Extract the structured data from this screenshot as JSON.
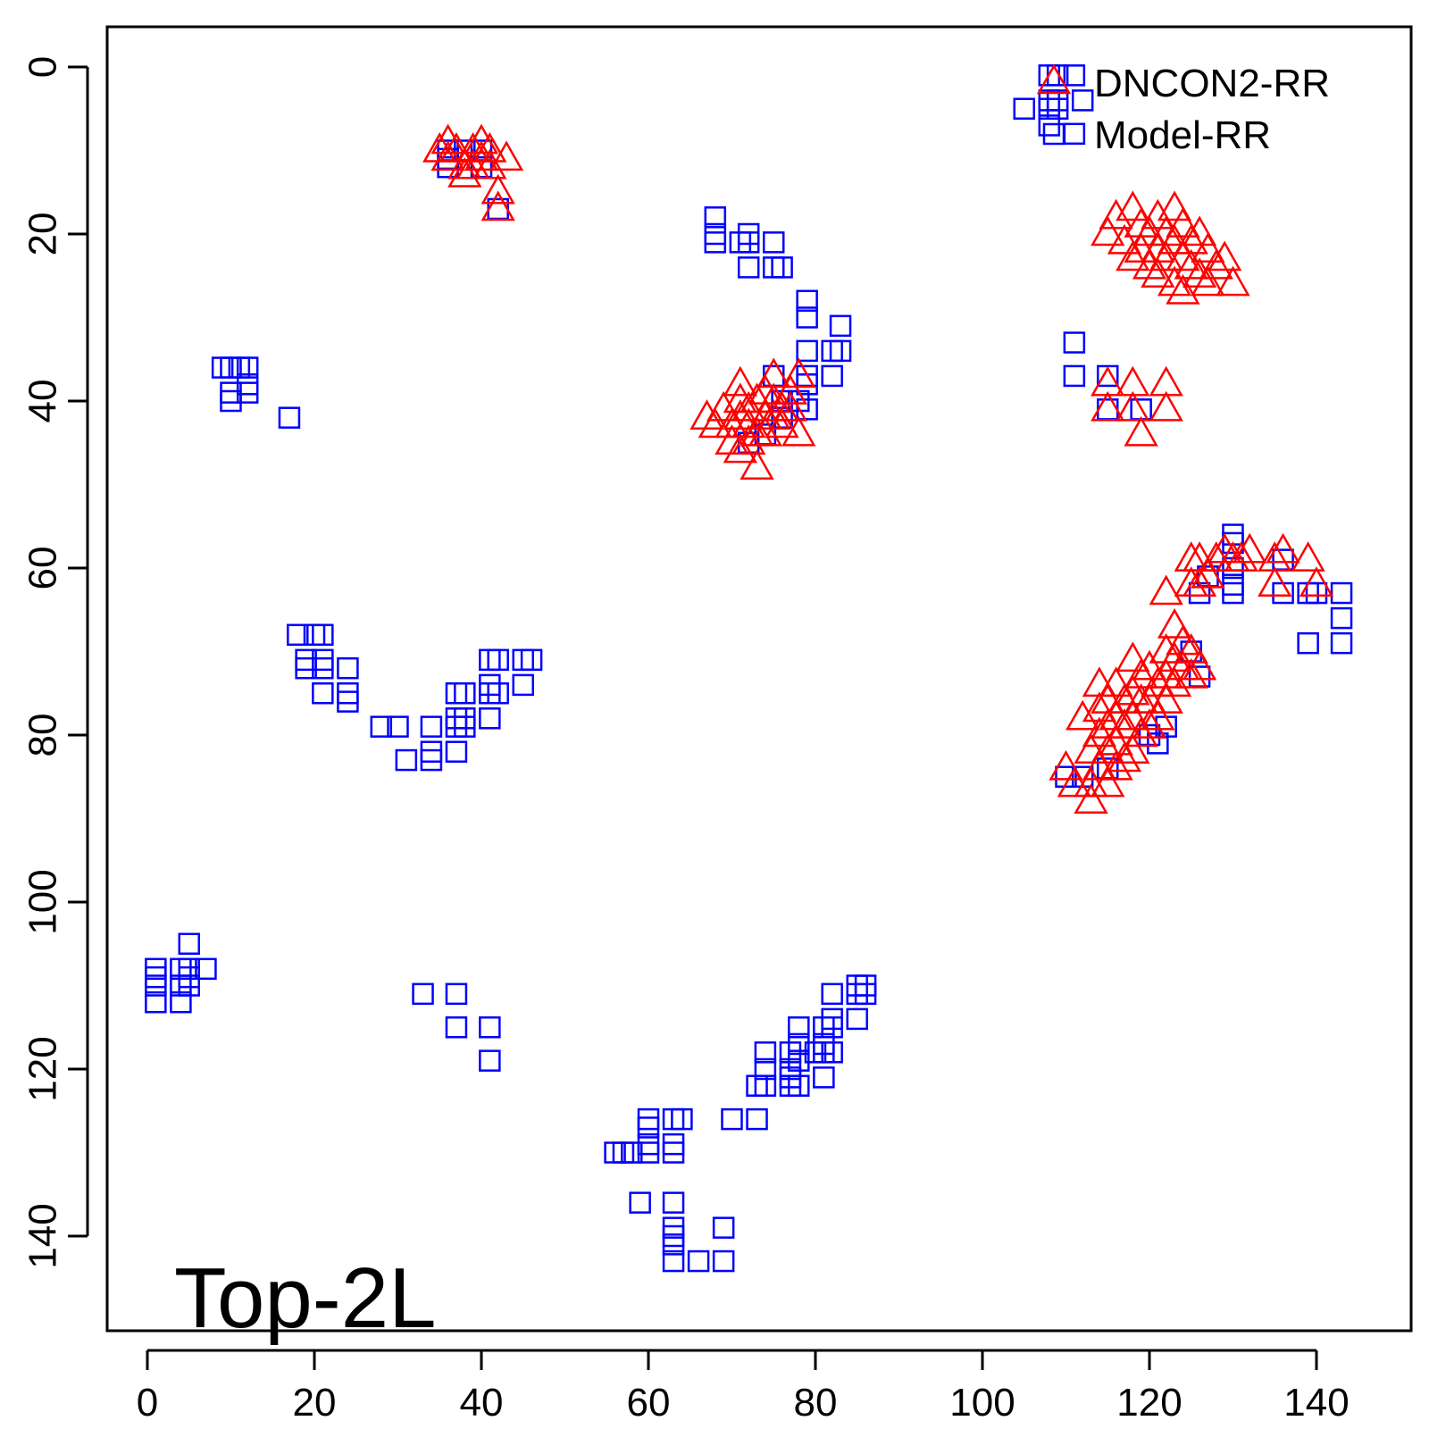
{
  "chart_data": {
    "type": "scatter",
    "annotation": "Top-2L",
    "xlim": [
      -5,
      150
    ],
    "ylim": [
      150,
      -5
    ],
    "y_axis_reversed": true,
    "x_ticks": [
      0,
      20,
      40,
      60,
      80,
      100,
      120,
      140
    ],
    "y_ticks": [
      0,
      20,
      40,
      60,
      80,
      100,
      120,
      140
    ],
    "legend": {
      "position": "top-right",
      "entries": [
        "DNCON2-RR",
        "Model-RR"
      ]
    },
    "series": [
      {
        "name": "DNCON2-RR",
        "marker": "triangle",
        "color": "#ff0000",
        "points": [
          [
            35,
            10
          ],
          [
            36,
            9
          ],
          [
            36,
            11
          ],
          [
            37,
            10
          ],
          [
            38,
            12
          ],
          [
            38,
            13
          ],
          [
            39,
            10
          ],
          [
            39,
            12
          ],
          [
            40,
            9
          ],
          [
            40,
            11
          ],
          [
            41,
            10
          ],
          [
            41,
            12
          ],
          [
            42,
            15
          ],
          [
            42,
            17
          ],
          [
            43,
            11
          ],
          [
            67,
            42
          ],
          [
            68,
            43
          ],
          [
            69,
            41
          ],
          [
            70,
            43
          ],
          [
            70,
            45
          ],
          [
            71,
            38
          ],
          [
            71,
            40
          ],
          [
            71,
            42
          ],
          [
            71,
            46
          ],
          [
            72,
            41
          ],
          [
            72,
            43
          ],
          [
            72,
            45
          ],
          [
            73,
            40
          ],
          [
            73,
            44
          ],
          [
            73,
            48
          ],
          [
            74,
            39
          ],
          [
            74,
            42
          ],
          [
            74,
            44
          ],
          [
            75,
            37
          ],
          [
            75,
            40
          ],
          [
            75,
            42
          ],
          [
            76,
            41
          ],
          [
            76,
            43
          ],
          [
            77,
            39
          ],
          [
            77,
            41
          ],
          [
            78,
            37
          ],
          [
            78,
            44
          ],
          [
            115,
            20
          ],
          [
            116,
            18
          ],
          [
            117,
            21
          ],
          [
            118,
            17
          ],
          [
            118,
            23
          ],
          [
            119,
            19
          ],
          [
            119,
            22
          ],
          [
            120,
            20
          ],
          [
            120,
            24
          ],
          [
            121,
            18
          ],
          [
            121,
            22
          ],
          [
            121,
            25
          ],
          [
            122,
            20
          ],
          [
            122,
            23
          ],
          [
            123,
            17
          ],
          [
            123,
            21
          ],
          [
            123,
            26
          ],
          [
            124,
            19
          ],
          [
            124,
            23
          ],
          [
            124,
            27
          ],
          [
            125,
            21
          ],
          [
            125,
            24
          ],
          [
            126,
            20
          ],
          [
            126,
            25
          ],
          [
            127,
            22
          ],
          [
            127,
            26
          ],
          [
            128,
            24
          ],
          [
            129,
            23
          ],
          [
            130,
            26
          ],
          [
            115,
            38
          ],
          [
            115,
            41
          ],
          [
            118,
            38
          ],
          [
            118,
            41
          ],
          [
            119,
            44
          ],
          [
            122,
            38
          ],
          [
            122,
            41
          ],
          [
            110,
            84
          ],
          [
            111,
            86
          ],
          [
            112,
            78
          ],
          [
            113,
            82
          ],
          [
            113,
            86
          ],
          [
            113,
            88
          ],
          [
            114,
            74
          ],
          [
            114,
            77
          ],
          [
            114,
            80
          ],
          [
            114,
            84
          ],
          [
            115,
            76
          ],
          [
            115,
            79
          ],
          [
            115,
            82
          ],
          [
            115,
            86
          ],
          [
            116,
            74
          ],
          [
            116,
            78
          ],
          [
            116,
            81
          ],
          [
            116,
            84
          ],
          [
            117,
            76
          ],
          [
            117,
            79
          ],
          [
            117,
            83
          ],
          [
            118,
            71
          ],
          [
            118,
            75
          ],
          [
            118,
            78
          ],
          [
            118,
            82
          ],
          [
            119,
            73
          ],
          [
            119,
            76
          ],
          [
            119,
            80
          ],
          [
            120,
            72
          ],
          [
            120,
            76
          ],
          [
            120,
            79
          ],
          [
            121,
            74
          ],
          [
            121,
            78
          ],
          [
            122,
            63
          ],
          [
            122,
            70
          ],
          [
            122,
            73
          ],
          [
            122,
            76
          ],
          [
            123,
            67
          ],
          [
            123,
            71
          ],
          [
            123,
            74
          ],
          [
            124,
            69
          ],
          [
            124,
            72
          ],
          [
            125,
            59
          ],
          [
            125,
            62
          ],
          [
            125,
            70
          ],
          [
            125,
            73
          ],
          [
            126,
            59
          ],
          [
            126,
            62
          ],
          [
            126,
            72
          ],
          [
            127,
            61
          ],
          [
            128,
            59
          ],
          [
            129,
            58
          ],
          [
            130,
            59
          ],
          [
            131,
            59
          ],
          [
            132,
            58
          ],
          [
            135,
            59
          ],
          [
            135,
            62
          ],
          [
            136,
            58
          ],
          [
            139,
            59
          ],
          [
            140,
            62
          ]
        ]
      },
      {
        "name": "Model-RR",
        "marker": "square",
        "color": "#0000ff",
        "points": [
          [
            108,
            1
          ],
          [
            109,
            1
          ],
          [
            111,
            1
          ],
          [
            108,
            4
          ],
          [
            109,
            4
          ],
          [
            112,
            4
          ],
          [
            105,
            5
          ],
          [
            108,
            5
          ],
          [
            109,
            5
          ],
          [
            108,
            7
          ],
          [
            111,
            8
          ],
          [
            36,
            10
          ],
          [
            36,
            11
          ],
          [
            36,
            12
          ],
          [
            38,
            10
          ],
          [
            40,
            10
          ],
          [
            40,
            12
          ],
          [
            42,
            17
          ],
          [
            68,
            18
          ],
          [
            68,
            20
          ],
          [
            68,
            21
          ],
          [
            71,
            21
          ],
          [
            72,
            20
          ],
          [
            72,
            21
          ],
          [
            72,
            24
          ],
          [
            75,
            21
          ],
          [
            75,
            24
          ],
          [
            76,
            24
          ],
          [
            79,
            28
          ],
          [
            79,
            30
          ],
          [
            83,
            31
          ],
          [
            79,
            34
          ],
          [
            82,
            34
          ],
          [
            83,
            34
          ],
          [
            75,
            37
          ],
          [
            79,
            37
          ],
          [
            82,
            37
          ],
          [
            79,
            38
          ],
          [
            76,
            40
          ],
          [
            78,
            40
          ],
          [
            76,
            42
          ],
          [
            79,
            41
          ],
          [
            74,
            44
          ],
          [
            72,
            45
          ],
          [
            111,
            33
          ],
          [
            111,
            37
          ],
          [
            115,
            37
          ],
          [
            115,
            41
          ],
          [
            119,
            41
          ],
          [
            9,
            36
          ],
          [
            10,
            36
          ],
          [
            10,
            39
          ],
          [
            10,
            40
          ],
          [
            11,
            36
          ],
          [
            12,
            36
          ],
          [
            12,
            38
          ],
          [
            12,
            39
          ],
          [
            17,
            42
          ],
          [
            18,
            68
          ],
          [
            20,
            68
          ],
          [
            21,
            68
          ],
          [
            19,
            71
          ],
          [
            19,
            72
          ],
          [
            21,
            71
          ],
          [
            21,
            72
          ],
          [
            24,
            72
          ],
          [
            21,
            75
          ],
          [
            24,
            75
          ],
          [
            24,
            76
          ],
          [
            28,
            79
          ],
          [
            30,
            79
          ],
          [
            34,
            79
          ],
          [
            31,
            83
          ],
          [
            34,
            82
          ],
          [
            34,
            83
          ],
          [
            37,
            82
          ],
          [
            37,
            79
          ],
          [
            37,
            78
          ],
          [
            37,
            75
          ],
          [
            38,
            75
          ],
          [
            38,
            78
          ],
          [
            38,
            79
          ],
          [
            41,
            71
          ],
          [
            42,
            71
          ],
          [
            45,
            71
          ],
          [
            46,
            71
          ],
          [
            41,
            74
          ],
          [
            41,
            75
          ],
          [
            42,
            75
          ],
          [
            45,
            74
          ],
          [
            41,
            78
          ],
          [
            110,
            85
          ],
          [
            112,
            85
          ],
          [
            115,
            84
          ],
          [
            120,
            80
          ],
          [
            121,
            81
          ],
          [
            122,
            79
          ],
          [
            125,
            70
          ],
          [
            126,
            73
          ],
          [
            126,
            63
          ],
          [
            127,
            61
          ],
          [
            130,
            56
          ],
          [
            130,
            57
          ],
          [
            130,
            60
          ],
          [
            130,
            62
          ],
          [
            130,
            63
          ],
          [
            136,
            59
          ],
          [
            136,
            63
          ],
          [
            139,
            63
          ],
          [
            140,
            63
          ],
          [
            139,
            69
          ],
          [
            143,
            63
          ],
          [
            143,
            66
          ],
          [
            143,
            69
          ],
          [
            1,
            108
          ],
          [
            1,
            109
          ],
          [
            1,
            110
          ],
          [
            1,
            112
          ],
          [
            4,
            108
          ],
          [
            4,
            110
          ],
          [
            4,
            112
          ],
          [
            5,
            105
          ],
          [
            5,
            108
          ],
          [
            5,
            109
          ],
          [
            5,
            110
          ],
          [
            7,
            108
          ],
          [
            33,
            111
          ],
          [
            37,
            111
          ],
          [
            37,
            115
          ],
          [
            41,
            115
          ],
          [
            41,
            119
          ],
          [
            56,
            130
          ],
          [
            57,
            130
          ],
          [
            58,
            130
          ],
          [
            59,
            136
          ],
          [
            60,
            126
          ],
          [
            60,
            127
          ],
          [
            60,
            129
          ],
          [
            60,
            130
          ],
          [
            63,
            126
          ],
          [
            63,
            129
          ],
          [
            63,
            130
          ],
          [
            63,
            136
          ],
          [
            63,
            139
          ],
          [
            63,
            140
          ],
          [
            63,
            141
          ],
          [
            63,
            143
          ],
          [
            64,
            126
          ],
          [
            66,
            143
          ],
          [
            69,
            139
          ],
          [
            69,
            143
          ],
          [
            70,
            126
          ],
          [
            73,
            126
          ],
          [
            73,
            122
          ],
          [
            74,
            118
          ],
          [
            74,
            120
          ],
          [
            74,
            122
          ],
          [
            77,
            118
          ],
          [
            77,
            120
          ],
          [
            77,
            121
          ],
          [
            77,
            122
          ],
          [
            78,
            115
          ],
          [
            78,
            117
          ],
          [
            78,
            119
          ],
          [
            78,
            122
          ],
          [
            80,
            118
          ],
          [
            81,
            115
          ],
          [
            81,
            117
          ],
          [
            81,
            118
          ],
          [
            81,
            121
          ],
          [
            82,
            111
          ],
          [
            82,
            114
          ],
          [
            82,
            115
          ],
          [
            82,
            118
          ],
          [
            85,
            110
          ],
          [
            85,
            111
          ],
          [
            85,
            114
          ],
          [
            86,
            110
          ],
          [
            86,
            111
          ]
        ]
      }
    ]
  }
}
